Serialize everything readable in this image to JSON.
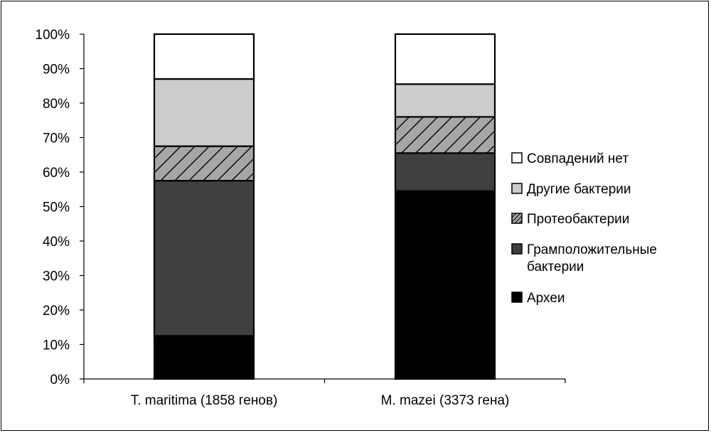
{
  "chart_data": {
    "type": "bar",
    "stacked": true,
    "percent": true,
    "categories": [
      "T. maritima (1858 генов)",
      "M. mazei (3373 гена)"
    ],
    "ylim": [
      0,
      100
    ],
    "yticks": [
      "0%",
      "10%",
      "20%",
      "30%",
      "40%",
      "50%",
      "60%",
      "70%",
      "80%",
      "90%",
      "100%"
    ],
    "series": [
      {
        "name": "Археи",
        "values": [
          12.5,
          54.5
        ],
        "color": "#000000",
        "pattern": "solid"
      },
      {
        "name": "Грамположительные бактерии",
        "values": [
          45,
          11
        ],
        "color": "#404040",
        "pattern": "solid"
      },
      {
        "name": "Протеобактерии",
        "values": [
          10,
          10.5
        ],
        "color": "#a6a6a6",
        "pattern": "hatch"
      },
      {
        "name": "Другие бактерии",
        "values": [
          19.5,
          9.5
        ],
        "color": "#cccccc",
        "pattern": "solid"
      },
      {
        "name": "Совпадений нет",
        "values": [
          13,
          14.5
        ],
        "color": "#ffffff",
        "pattern": "solid"
      }
    ],
    "legend_order": [
      "Совпадений нет",
      "Другие бактерии",
      "Протеобактерии",
      "Грамположительные бактерии",
      "Археи"
    ],
    "legend_lines": [
      [
        "Совпадений нет"
      ],
      [
        "Другие бактерии"
      ],
      [
        "Протеобактерии"
      ],
      [
        "Грамположительные",
        "бактерии"
      ],
      [
        "Археи"
      ]
    ],
    "legend_position": "right",
    "grid": false
  }
}
